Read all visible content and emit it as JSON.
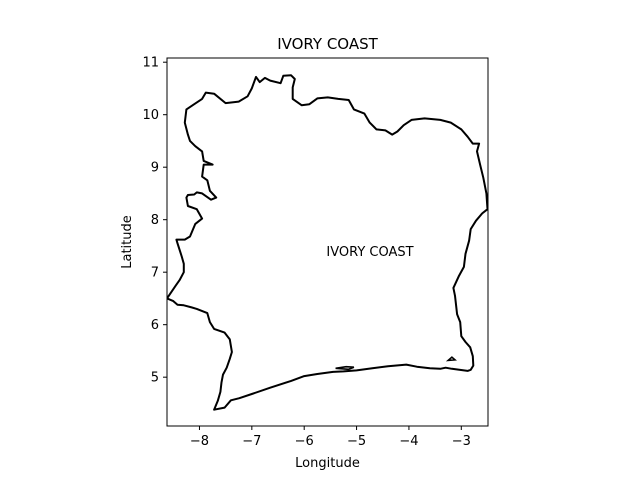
{
  "title": "IVORY COAST",
  "xlabel": "Longitude",
  "ylabel": "Latitude",
  "region_label": "IVORY COAST",
  "x_ticks": [
    {
      "value": -8,
      "label": "−8"
    },
    {
      "value": -7,
      "label": "−7"
    },
    {
      "value": -6,
      "label": "−6"
    },
    {
      "value": -5,
      "label": "−5"
    },
    {
      "value": -4,
      "label": "−4"
    },
    {
      "value": -3,
      "label": "−3"
    }
  ],
  "y_ticks": [
    {
      "value": 5,
      "label": "5"
    },
    {
      "value": 6,
      "label": "6"
    },
    {
      "value": 7,
      "label": "7"
    },
    {
      "value": 8,
      "label": "8"
    },
    {
      "value": 9,
      "label": "9"
    },
    {
      "value": 10,
      "label": "10"
    },
    {
      "value": 11,
      "label": "11"
    }
  ],
  "xlim": [
    -8.62,
    -2.49
  ],
  "ylim": [
    4.07,
    11.08
  ],
  "outline_color": "#000000",
  "boundary": [
    [
      -7.72,
      4.38
    ],
    [
      -7.52,
      4.42
    ],
    [
      -7.4,
      4.56
    ],
    [
      -7.24,
      4.6
    ],
    [
      -7.0,
      4.68
    ],
    [
      -6.65,
      4.8
    ],
    [
      -6.25,
      4.93
    ],
    [
      -6.0,
      5.02
    ],
    [
      -5.75,
      5.06
    ],
    [
      -5.45,
      5.1
    ],
    [
      -5.25,
      5.11
    ],
    [
      -5.0,
      5.13
    ],
    [
      -4.7,
      5.17
    ],
    [
      -4.4,
      5.21
    ],
    [
      -4.05,
      5.24
    ],
    [
      -3.85,
      5.2
    ],
    [
      -3.6,
      5.17
    ],
    [
      -3.4,
      5.16
    ],
    [
      -3.3,
      5.18
    ],
    [
      -3.18,
      5.16
    ],
    [
      -2.95,
      5.13
    ],
    [
      -2.88,
      5.12
    ],
    [
      -2.82,
      5.14
    ],
    [
      -2.77,
      5.22
    ],
    [
      -2.78,
      5.4
    ],
    [
      -2.83,
      5.57
    ],
    [
      -2.92,
      5.67
    ],
    [
      -3.0,
      5.78
    ],
    [
      -3.02,
      6.05
    ],
    [
      -3.08,
      6.2
    ],
    [
      -3.12,
      6.55
    ],
    [
      -3.15,
      6.7
    ],
    [
      -3.05,
      6.92
    ],
    [
      -2.95,
      7.1
    ],
    [
      -2.92,
      7.35
    ],
    [
      -2.85,
      7.6
    ],
    [
      -2.82,
      7.82
    ],
    [
      -2.72,
      7.98
    ],
    [
      -2.6,
      8.12
    ],
    [
      -2.5,
      8.2
    ],
    [
      -2.52,
      8.5
    ],
    [
      -2.58,
      8.8
    ],
    [
      -2.64,
      9.05
    ],
    [
      -2.7,
      9.3
    ],
    [
      -2.66,
      9.45
    ],
    [
      -2.78,
      9.45
    ],
    [
      -2.88,
      9.58
    ],
    [
      -3.0,
      9.72
    ],
    [
      -3.2,
      9.85
    ],
    [
      -3.4,
      9.9
    ],
    [
      -3.7,
      9.93
    ],
    [
      -3.95,
      9.9
    ],
    [
      -4.1,
      9.8
    ],
    [
      -4.22,
      9.68
    ],
    [
      -4.32,
      9.62
    ],
    [
      -4.45,
      9.7
    ],
    [
      -4.62,
      9.72
    ],
    [
      -4.75,
      9.85
    ],
    [
      -4.85,
      10.02
    ],
    [
      -5.05,
      10.1
    ],
    [
      -5.15,
      10.28
    ],
    [
      -5.35,
      10.3
    ],
    [
      -5.55,
      10.33
    ],
    [
      -5.75,
      10.31
    ],
    [
      -5.9,
      10.2
    ],
    [
      -6.05,
      10.18
    ],
    [
      -6.22,
      10.3
    ],
    [
      -6.22,
      10.52
    ],
    [
      -6.18,
      10.68
    ],
    [
      -6.25,
      10.75
    ],
    [
      -6.4,
      10.74
    ],
    [
      -6.45,
      10.6
    ],
    [
      -6.65,
      10.65
    ],
    [
      -6.75,
      10.7
    ],
    [
      -6.85,
      10.62
    ],
    [
      -6.92,
      10.72
    ],
    [
      -7.0,
      10.5
    ],
    [
      -7.08,
      10.35
    ],
    [
      -7.25,
      10.25
    ],
    [
      -7.5,
      10.22
    ],
    [
      -7.72,
      10.4
    ],
    [
      -7.88,
      10.42
    ],
    [
      -7.95,
      10.3
    ],
    [
      -8.1,
      10.2
    ],
    [
      -8.25,
      10.1
    ],
    [
      -8.28,
      9.85
    ],
    [
      -8.22,
      9.62
    ],
    [
      -8.18,
      9.5
    ],
    [
      -8.08,
      9.4
    ],
    [
      -7.95,
      9.3
    ],
    [
      -7.92,
      9.12
    ],
    [
      -7.75,
      9.05
    ],
    [
      -7.92,
      9.05
    ],
    [
      -7.95,
      8.82
    ],
    [
      -7.85,
      8.75
    ],
    [
      -7.8,
      8.55
    ],
    [
      -7.68,
      8.42
    ],
    [
      -7.78,
      8.38
    ],
    [
      -7.95,
      8.5
    ],
    [
      -8.05,
      8.52
    ],
    [
      -8.1,
      8.48
    ],
    [
      -8.22,
      8.47
    ],
    [
      -8.25,
      8.42
    ],
    [
      -8.22,
      8.26
    ],
    [
      -8.05,
      8.2
    ],
    [
      -7.95,
      8.02
    ],
    [
      -8.08,
      7.92
    ],
    [
      -8.18,
      7.68
    ],
    [
      -8.28,
      7.62
    ],
    [
      -8.44,
      7.62
    ],
    [
      -8.42,
      7.55
    ],
    [
      -8.34,
      7.3
    ],
    [
      -8.3,
      7.16
    ],
    [
      -8.3,
      7.0
    ],
    [
      -8.38,
      6.85
    ],
    [
      -8.45,
      6.75
    ],
    [
      -8.62,
      6.5
    ],
    [
      -8.5,
      6.45
    ],
    [
      -8.42,
      6.38
    ],
    [
      -8.3,
      6.37
    ],
    [
      -8.15,
      6.33
    ],
    [
      -8.05,
      6.3
    ],
    [
      -7.85,
      6.22
    ],
    [
      -7.8,
      6.05
    ],
    [
      -7.72,
      5.92
    ],
    [
      -7.52,
      5.85
    ],
    [
      -7.42,
      5.72
    ],
    [
      -7.38,
      5.48
    ],
    [
      -7.42,
      5.35
    ],
    [
      -7.48,
      5.18
    ],
    [
      -7.55,
      5.05
    ],
    [
      -7.58,
      4.9
    ],
    [
      -7.6,
      4.72
    ],
    [
      -7.65,
      4.55
    ],
    [
      -7.72,
      4.38
    ]
  ],
  "lagoon_islets": [
    [
      [
        -5.4,
        5.17
      ],
      [
        -5.2,
        5.2
      ],
      [
        -5.05,
        5.19
      ],
      [
        -5.15,
        5.15
      ]
    ],
    [
      [
        -3.25,
        5.32
      ],
      [
        -3.18,
        5.38
      ],
      [
        -3.12,
        5.33
      ]
    ]
  ]
}
